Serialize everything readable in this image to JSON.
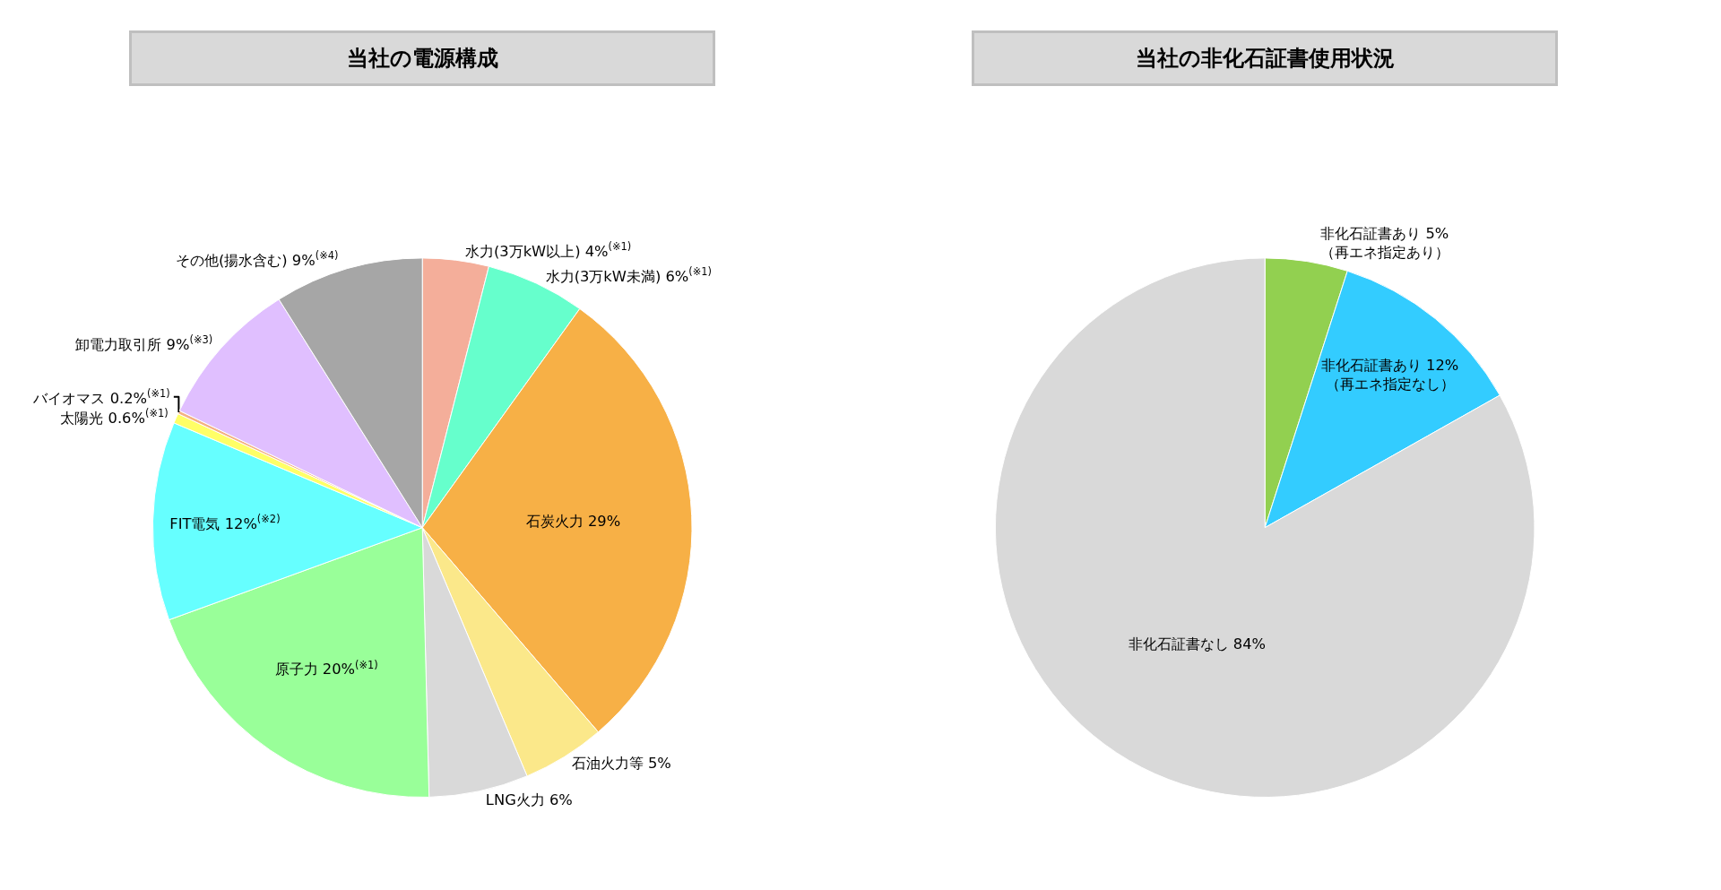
{
  "chart_data": [
    {
      "type": "pie",
      "title": "当社の電源構成",
      "legend": false,
      "categories": [
        "水力(3万kW以上) 4%$^{(※1)}$",
        "水力(3万kW未満) 6%$^{(※1)}$",
        "石炭火力 29%",
        "石油火力等 5%",
        "LNG火力 6%",
        "原子力 20%$^{(※1)}$",
        "FIT電気 12%$^{(※2)}$",
        "太陽光 0.6%$^{(※1)}$",
        "バイオマス 0.2%$^{(※1)}$",
        "卸電力取引所 9%$^{(※3)}$",
        "その他(揚水含む) 9%$^{(※4)}$"
      ],
      "values": [
        4,
        6,
        29,
        5,
        6,
        20,
        12,
        0.6,
        0.2,
        9,
        9
      ],
      "colors": [
        "#f4ae9a",
        "#66ffcc",
        "#f7b046",
        "#fbe88a",
        "#d9d9d9",
        "#99ff99",
        "#66ffff",
        "#ffff66",
        "#f4b183",
        "#e0bfff",
        "#a6a6a6"
      ]
    },
    {
      "type": "pie",
      "title": "当社の非化石証書使用状況",
      "legend": false,
      "categories": [
        "非化石証書あり 5%\n（再エネ指定あり）",
        "非化石証書あり 12%\n（再エネ指定なし）",
        "非化石証書なし 84%"
      ],
      "values": [
        5,
        12,
        84
      ],
      "colors": [
        "#92d050",
        "#33ccff",
        "#d9d9d9"
      ]
    }
  ]
}
